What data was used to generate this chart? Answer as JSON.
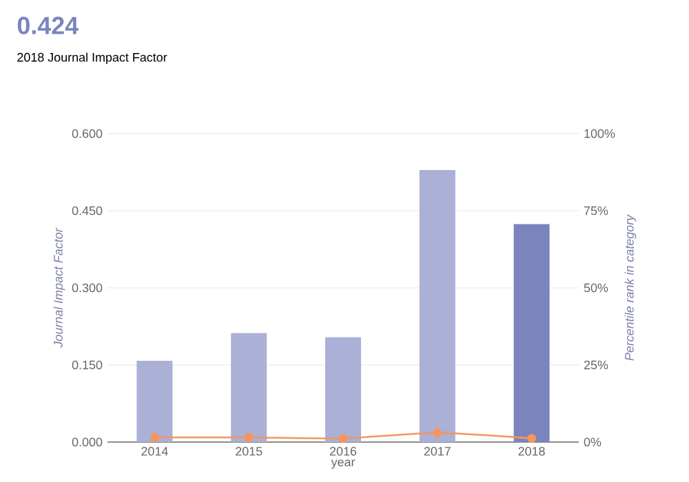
{
  "chart_data": {
    "type": "bar",
    "title": "0.424",
    "subtitle": "2018 Journal Impact Factor",
    "xlabel": "year",
    "ylabel": "Journal Impact Factor",
    "y2label": "Percentile rank in category",
    "categories": [
      "2014",
      "2015",
      "2016",
      "2017",
      "2018"
    ],
    "series": [
      {
        "colors": [
          "#aab0d6",
          "#aab0d6",
          "#aab0d6",
          "#aab0d6",
          "#7b84bc"
        ],
        "values": [
          0.158,
          0.212,
          0.204,
          0.529,
          0.424
        ]
      },
      {
        "type": "line",
        "axis": "y2",
        "color": "#f4955f",
        "marker": "circle",
        "values": [
          1.5,
          1.5,
          1.2,
          3.0,
          1.2
        ]
      }
    ],
    "ylim": [
      0,
      0.6
    ],
    "yticks": [
      {
        "value": 0,
        "label": "0.000"
      },
      {
        "value": 0.15,
        "label": "0.150"
      },
      {
        "value": 0.3,
        "label": "0.300"
      },
      {
        "value": 0.45,
        "label": "0.450"
      },
      {
        "value": 0.6,
        "label": "0.600"
      }
    ],
    "y2lim": [
      0,
      100
    ],
    "y2ticks": [
      {
        "value": 0,
        "label": "0%"
      },
      {
        "value": 25,
        "label": "25%"
      },
      {
        "value": 50,
        "label": "50%"
      },
      {
        "value": 75,
        "label": "75%"
      },
      {
        "value": 100,
        "label": "100%"
      }
    ],
    "grid": "y"
  }
}
